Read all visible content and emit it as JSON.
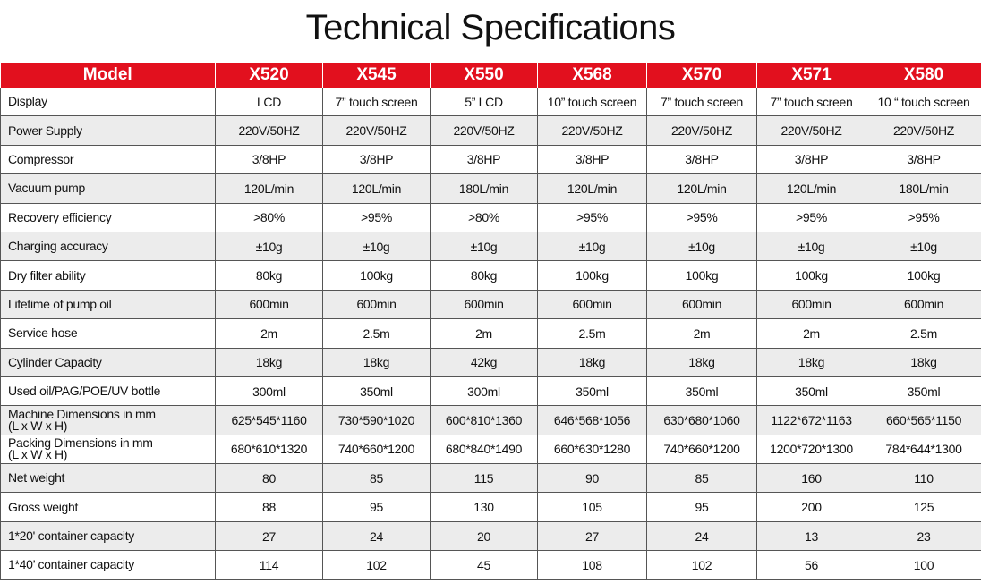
{
  "title": "Technical Specifications",
  "table": {
    "header": [
      "Model",
      "X520",
      "X545",
      "X550",
      "X568",
      "X570",
      "X571",
      "X580"
    ],
    "rows": [
      [
        "Display",
        "LCD",
        "7” touch screen",
        "5” LCD",
        "10” touch screen",
        "7” touch screen",
        "7” touch screen",
        "10 “ touch screen"
      ],
      [
        "Power Supply",
        "220V/50HZ",
        "220V/50HZ",
        "220V/50HZ",
        "220V/50HZ",
        "220V/50HZ",
        "220V/50HZ",
        "220V/50HZ"
      ],
      [
        "Compressor",
        "3/8HP",
        "3/8HP",
        "3/8HP",
        "3/8HP",
        "3/8HP",
        "3/8HP",
        "3/8HP"
      ],
      [
        "Vacuum pump",
        "120L/min",
        "120L/min",
        "180L/min",
        "120L/min",
        "120L/min",
        "120L/min",
        "180L/min"
      ],
      [
        "Recovery efficiency",
        ">80%",
        ">95%",
        ">80%",
        ">95%",
        ">95%",
        ">95%",
        ">95%"
      ],
      [
        "Charging accuracy",
        "±10g",
        "±10g",
        "±10g",
        "±10g",
        "±10g",
        "±10g",
        "±10g"
      ],
      [
        "Dry filter ability",
        "80kg",
        "100kg",
        "80kg",
        "100kg",
        "100kg",
        "100kg",
        "100kg"
      ],
      [
        "Lifetime of pump oil",
        "600min",
        "600min",
        "600min",
        "600min",
        "600min",
        "600min",
        "600min"
      ],
      [
        "Service hose",
        "2m",
        "2.5m",
        "2m",
        "2.5m",
        "2m",
        "2m",
        "2.5m"
      ],
      [
        "Cylinder Capacity",
        "18kg",
        "18kg",
        "42kg",
        "18kg",
        "18kg",
        "18kg",
        "18kg"
      ],
      [
        "Used oil/PAG/POE/UV bottle",
        "300ml",
        "350ml",
        "300ml",
        "350ml",
        "350ml",
        "350ml",
        "350ml"
      ],
      [
        "Machine Dimensions in mm\n(L x W x H)",
        "625*545*1160",
        "730*590*1020",
        "600*810*1360",
        "646*568*1056",
        "630*680*1060",
        "1122*672*1163",
        "660*565*1150"
      ],
      [
        "Packing Dimensions in mm\n(L x W x H)",
        "680*610*1320",
        "740*660*1200",
        "680*840*1490",
        "660*630*1280",
        "740*660*1200",
        "1200*720*1300",
        "784*644*1300"
      ],
      [
        "Net weight",
        "80",
        "85",
        "115",
        "90",
        "85",
        "160",
        "110"
      ],
      [
        "Gross weight",
        "88",
        "95",
        "130",
        "105",
        "95",
        "200",
        "125"
      ],
      [
        "1*20' container capacity",
        "27",
        "24",
        "20",
        "27",
        "24",
        "13",
        "23"
      ],
      [
        "1*40’ container capacity",
        "114",
        "102",
        "45",
        "108",
        "102",
        "56",
        "100"
      ]
    ]
  }
}
